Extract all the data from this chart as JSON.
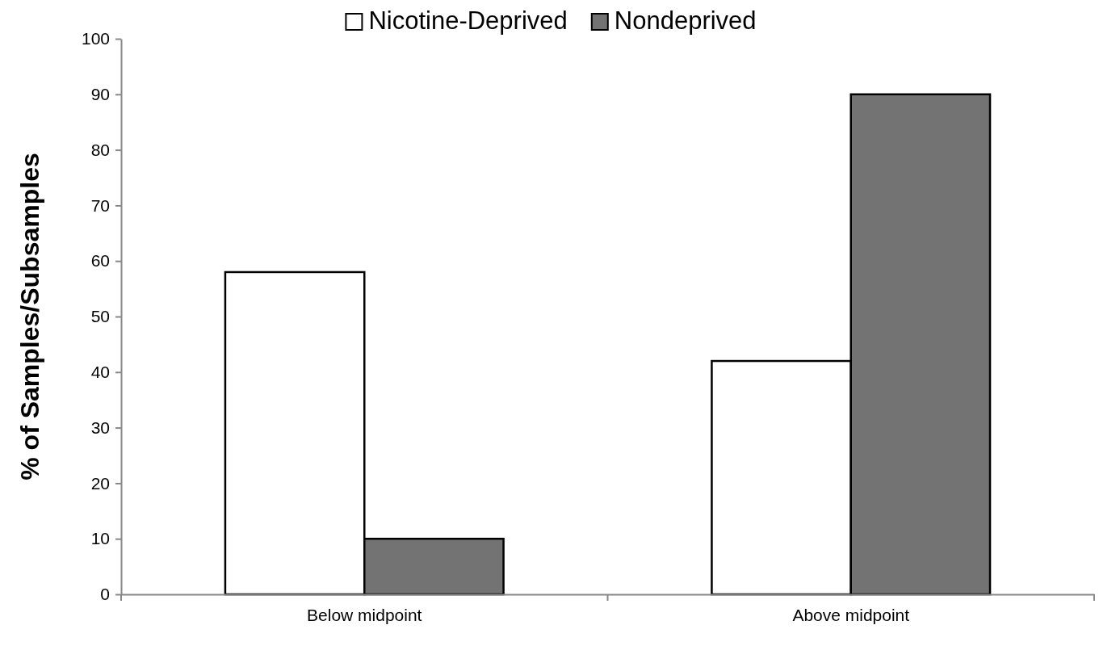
{
  "chart_data": {
    "type": "bar",
    "ylabel": "% of Samples/Subsamples",
    "categories": [
      "Below midpoint",
      "Above midpoint"
    ],
    "series": [
      {
        "name": "Nicotine-Deprived",
        "color": "#ffffff",
        "values": [
          58,
          42
        ]
      },
      {
        "name": "Nondeprived",
        "color": "#737373",
        "values": [
          10,
          90
        ]
      }
    ],
    "ylim": [
      0,
      100
    ],
    "yticks": [
      0,
      10,
      20,
      30,
      40,
      50,
      60,
      70,
      80,
      90,
      100
    ],
    "grid": false,
    "legend": "top"
  }
}
